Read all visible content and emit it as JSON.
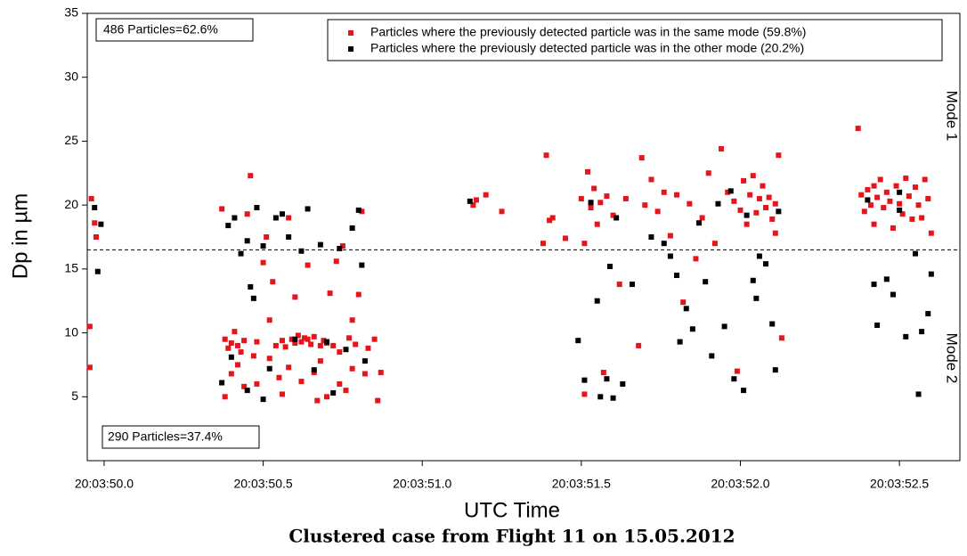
{
  "chart_data": {
    "type": "scatter",
    "x_label": "UTC Time",
    "y_label": "Dp in µm",
    "caption": "Clustered case from Flight 11 on 15.05.2012",
    "annotations": [
      "486 Particles=62.6%",
      "290 Particles=37.4%",
      "Mode 1",
      "Mode 2"
    ],
    "hline": 16.5,
    "xlim": [
      49.947,
      52.69
    ],
    "ylim": [
      0,
      35
    ],
    "xticks": [
      {
        "value": 50.0,
        "label": "20:03:50.0"
      },
      {
        "value": 50.5,
        "label": "20:03:50.5"
      },
      {
        "value": 51.0,
        "label": "20:03:51.0"
      },
      {
        "value": 51.5,
        "label": "20:03:51.5"
      },
      {
        "value": 52.0,
        "label": "20:03:52.0"
      },
      {
        "value": 52.5,
        "label": "20:03:52.5"
      }
    ],
    "yticks": [
      5,
      10,
      15,
      20,
      25,
      30,
      35
    ],
    "series": [
      {
        "name": "Particles where the previously detected particle was in the same mode (59.8%)",
        "color": "#e8141c",
        "x": [
          49.96,
          49.97,
          49.975,
          49.955,
          49.955,
          50.37,
          50.38,
          50.39,
          50.4,
          50.41,
          50.42,
          50.43,
          50.44,
          50.45,
          50.46,
          50.47,
          50.38,
          50.4,
          50.42,
          50.44,
          50.48,
          50.5,
          50.51,
          50.52,
          50.53,
          50.54,
          50.55,
          50.56,
          50.57,
          50.58,
          50.59,
          50.6,
          50.61,
          50.62,
          50.63,
          50.64,
          50.65,
          50.66,
          50.67,
          50.68,
          50.69,
          50.7,
          50.71,
          50.72,
          50.73,
          50.74,
          50.75,
          50.76,
          50.77,
          50.78,
          50.79,
          50.8,
          50.81,
          50.82,
          50.83,
          50.85,
          50.86,
          50.87,
          50.48,
          50.52,
          50.58,
          50.62,
          50.66,
          50.7,
          50.74,
          50.78,
          50.6,
          50.64,
          50.68,
          50.56,
          51.16,
          51.17,
          51.2,
          51.25,
          51.38,
          51.39,
          51.4,
          51.41,
          51.45,
          51.5,
          51.51,
          51.52,
          51.53,
          51.54,
          51.55,
          51.56,
          51.57,
          51.58,
          51.6,
          51.62,
          51.64,
          51.51,
          51.68,
          51.69,
          51.7,
          51.72,
          51.74,
          51.76,
          51.78,
          51.8,
          51.82,
          51.84,
          51.86,
          51.88,
          51.9,
          51.92,
          51.94,
          51.96,
          51.98,
          51.99,
          52.0,
          52.01,
          52.02,
          52.03,
          52.04,
          52.05,
          52.06,
          52.07,
          52.08,
          52.09,
          52.1,
          52.11,
          52.12,
          52.13,
          52.11,
          52.37,
          52.38,
          52.39,
          52.4,
          52.41,
          52.42,
          52.43,
          52.44,
          52.45,
          52.46,
          52.47,
          52.48,
          52.49,
          52.5,
          52.51,
          52.52,
          52.53,
          52.54,
          52.55,
          52.56,
          52.57,
          52.58,
          52.59,
          52.6,
          52.42
        ],
        "values": [
          20.5,
          18.6,
          17.5,
          10.5,
          7.3,
          19.7,
          9.5,
          8.8,
          9.2,
          10.1,
          9.0,
          8.5,
          9.4,
          19.3,
          22.3,
          8.2,
          5.0,
          6.8,
          7.5,
          5.8,
          9.3,
          15.5,
          17.5,
          11.0,
          14.0,
          9.0,
          6.5,
          5.2,
          8.9,
          19.0,
          9.5,
          12.8,
          9.8,
          9.3,
          9.6,
          15.3,
          9.1,
          9.7,
          4.7,
          7.8,
          9.4,
          9.2,
          13.1,
          9.0,
          15.6,
          8.5,
          16.8,
          5.5,
          9.6,
          11.0,
          9.1,
          13.0,
          19.5,
          6.8,
          8.8,
          9.5,
          4.7,
          6.9,
          6.0,
          8.0,
          7.3,
          6.2,
          6.9,
          5.0,
          6.0,
          7.2,
          9.2,
          9.5,
          9.0,
          9.4,
          20.0,
          20.4,
          20.8,
          19.5,
          17.0,
          23.9,
          18.8,
          19.0,
          17.4,
          20.5,
          17.0,
          22.6,
          19.8,
          21.3,
          18.5,
          20.2,
          6.9,
          20.7,
          19.2,
          13.8,
          20.5,
          5.2,
          9.0,
          23.7,
          20.0,
          22.0,
          19.5,
          21.0,
          17.6,
          20.8,
          12.4,
          20.1,
          15.8,
          19.0,
          22.5,
          17.0,
          24.4,
          21.0,
          20.3,
          7.0,
          19.6,
          21.9,
          18.5,
          20.8,
          22.3,
          19.4,
          20.5,
          21.5,
          19.8,
          20.6,
          18.9,
          20.1,
          23.9,
          9.6,
          17.8,
          26.0,
          20.8,
          19.5,
          21.2,
          20.0,
          18.5,
          20.6,
          22.0,
          19.8,
          21.0,
          20.3,
          18.2,
          21.5,
          20.1,
          19.3,
          22.1,
          20.7,
          18.9,
          21.4,
          20.0,
          19.0,
          22.0,
          20.5,
          17.8,
          21.5
        ]
      },
      {
        "name": "Particles where the previously detected particle was in the other mode (20.2%)",
        "color": "#000000",
        "x": [
          49.97,
          49.99,
          49.98,
          50.37,
          50.39,
          50.4,
          50.41,
          50.43,
          50.45,
          50.46,
          50.47,
          50.48,
          50.5,
          50.52,
          50.54,
          50.56,
          50.58,
          50.6,
          50.62,
          50.64,
          50.66,
          50.68,
          50.7,
          50.72,
          50.74,
          50.76,
          50.78,
          50.8,
          50.81,
          50.82,
          50.5,
          50.45,
          51.15,
          51.49,
          51.51,
          51.53,
          51.55,
          51.56,
          51.58,
          51.59,
          51.6,
          51.61,
          51.63,
          51.66,
          51.72,
          51.76,
          51.78,
          51.8,
          51.81,
          51.83,
          51.85,
          51.87,
          51.89,
          51.91,
          51.93,
          51.95,
          51.97,
          51.98,
          52.01,
          52.02,
          52.04,
          52.05,
          52.06,
          52.08,
          52.1,
          52.11,
          52.12,
          52.4,
          52.42,
          52.43,
          52.46,
          52.48,
          52.5,
          52.52,
          52.55,
          52.56,
          52.57,
          52.59,
          52.6,
          52.5
        ],
        "values": [
          19.8,
          18.5,
          14.8,
          6.1,
          18.4,
          8.1,
          19.0,
          16.2,
          17.2,
          13.6,
          12.7,
          19.8,
          16.8,
          7.2,
          19.0,
          19.3,
          17.5,
          9.5,
          16.4,
          19.7,
          7.1,
          16.9,
          9.3,
          5.3,
          16.6,
          8.7,
          18.2,
          19.6,
          15.3,
          7.8,
          4.8,
          5.5,
          20.3,
          9.4,
          6.3,
          20.2,
          12.5,
          5.0,
          6.4,
          15.2,
          4.9,
          19.0,
          6.0,
          13.8,
          17.5,
          17.0,
          16.0,
          14.5,
          9.3,
          11.9,
          10.3,
          18.6,
          14.0,
          8.2,
          20.1,
          10.5,
          21.1,
          6.4,
          5.5,
          19.2,
          14.1,
          12.7,
          16.0,
          15.4,
          10.7,
          7.1,
          19.5,
          20.4,
          13.8,
          10.6,
          14.2,
          13.0,
          19.6,
          9.7,
          16.2,
          5.2,
          10.1,
          11.5,
          14.6,
          21.0
        ]
      }
    ]
  }
}
